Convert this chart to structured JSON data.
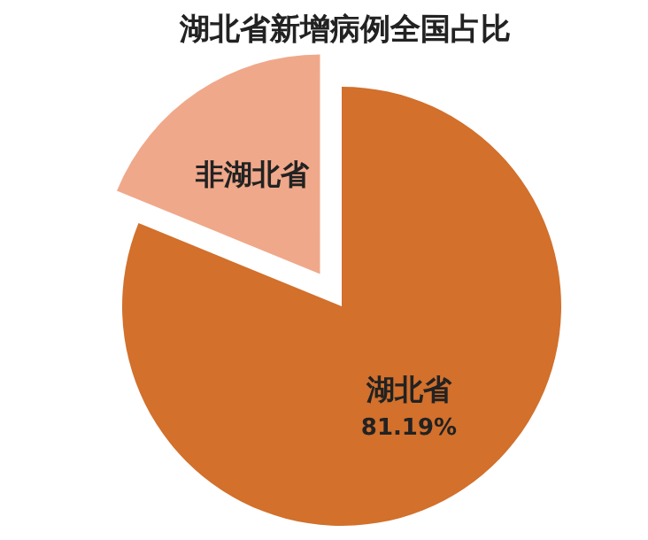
{
  "chart_data": {
    "type": "pie",
    "title": "湖北省新增病例全国占比",
    "categories": [
      "湖北省",
      "非湖北省"
    ],
    "values": [
      81.19,
      18.81
    ],
    "colors": [
      "#d2702c",
      "#f0a88a"
    ],
    "value_labels": [
      "81.19%",
      null
    ]
  }
}
